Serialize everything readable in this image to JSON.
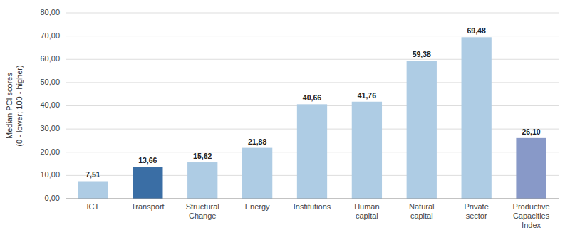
{
  "chart_data": {
    "type": "bar",
    "categories": [
      "ICT",
      "Transport",
      "Structural\nChange",
      "Energy",
      "Institutions",
      "Human\ncapital",
      "Natural\ncapital",
      "Private\nsector",
      "Productive\nCapacities\nIndex"
    ],
    "values": [
      7.51,
      13.66,
      15.62,
      21.88,
      40.66,
      41.76,
      59.38,
      69.48,
      26.1
    ],
    "value_labels": [
      "7,51",
      "13,66",
      "15,62",
      "21,88",
      "40,66",
      "41,76",
      "59,38",
      "69,48",
      "26,10"
    ],
    "data_labels": true,
    "colors": [
      "#aecce4",
      "#3a6ea5",
      "#aecce4",
      "#aecce4",
      "#aecce4",
      "#aecce4",
      "#aecce4",
      "#aecce4",
      "#8899c8"
    ],
    "ylabel": "Median PCI scores\n(0 - lower; 100 - higher)",
    "ylim": [
      0,
      80
    ],
    "yticks": [
      {
        "value": 0,
        "label": "0,00"
      },
      {
        "value": 10,
        "label": "10,00"
      },
      {
        "value": 20,
        "label": "20,00"
      },
      {
        "value": 30,
        "label": "30,00"
      },
      {
        "value": 40,
        "label": "40,00"
      },
      {
        "value": 50,
        "label": "50,00"
      },
      {
        "value": 60,
        "label": "60,00"
      },
      {
        "value": 70,
        "label": "70,00"
      },
      {
        "value": 80,
        "label": "80,00"
      }
    ],
    "grid": true
  }
}
